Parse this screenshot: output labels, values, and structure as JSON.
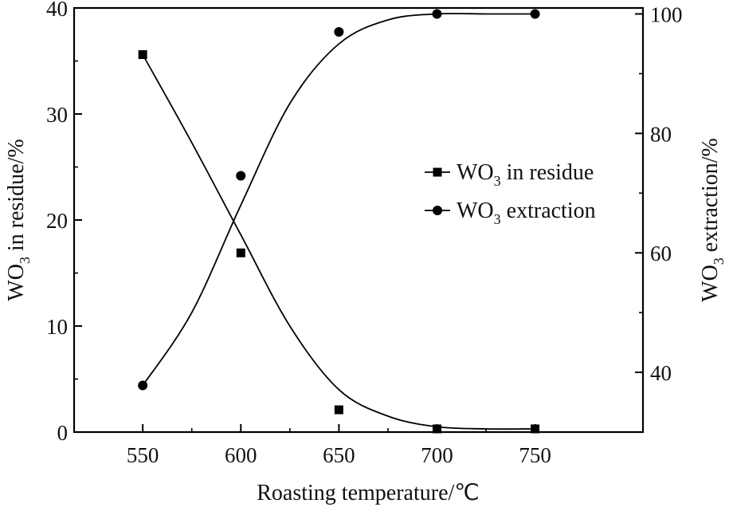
{
  "chart_data": {
    "type": "line",
    "title": "",
    "xlabel": "Roasting temperature/℃",
    "ylabel_left": {
      "main": "WO",
      "sub": "3",
      "rest": " in residue/%"
    },
    "ylabel_right": {
      "main": "WO",
      "sub": "3",
      "rest": " extraction/%"
    },
    "x_ticks": [
      550,
      600,
      650,
      700,
      750
    ],
    "xlim": [
      515,
      805
    ],
    "left_ticks": [
      0,
      10,
      20,
      30,
      40
    ],
    "left_ylim": [
      0,
      40
    ],
    "right_ticks": [
      40,
      60,
      80,
      100
    ],
    "right_ylim": [
      30,
      101
    ],
    "grid": false,
    "legend_position": "right-middle",
    "series": [
      {
        "name": "WO3 in residue",
        "legend": {
          "main": "WO",
          "sub": "3",
          "rest": " in residue"
        },
        "marker": "square",
        "axis": "left",
        "x": [
          550,
          600,
          650,
          700,
          750
        ],
        "y": [
          35.6,
          16.9,
          2.1,
          0.3,
          0.3
        ],
        "fit": [
          [
            550,
            35.6
          ],
          [
            575,
            27.3
          ],
          [
            600,
            18.6
          ],
          [
            625,
            10.0
          ],
          [
            650,
            4.0
          ],
          [
            675,
            1.5
          ],
          [
            700,
            0.5
          ],
          [
            725,
            0.3
          ],
          [
            750,
            0.3
          ]
        ]
      },
      {
        "name": "WO3 extraction",
        "legend": {
          "main": "WO",
          "sub": "3",
          "rest": " extraction"
        },
        "marker": "circle",
        "axis": "right",
        "x": [
          550,
          600,
          650,
          700,
          750
        ],
        "y": [
          37.8,
          72.9,
          97.0,
          100.0,
          100.0
        ],
        "fit": [
          [
            550,
            37.8
          ],
          [
            575,
            50.0
          ],
          [
            600,
            68.0
          ],
          [
            625,
            85.0
          ],
          [
            650,
            95.0
          ],
          [
            675,
            99.0
          ],
          [
            700,
            100.0
          ],
          [
            725,
            100.0
          ],
          [
            750,
            100.0
          ]
        ]
      }
    ]
  }
}
